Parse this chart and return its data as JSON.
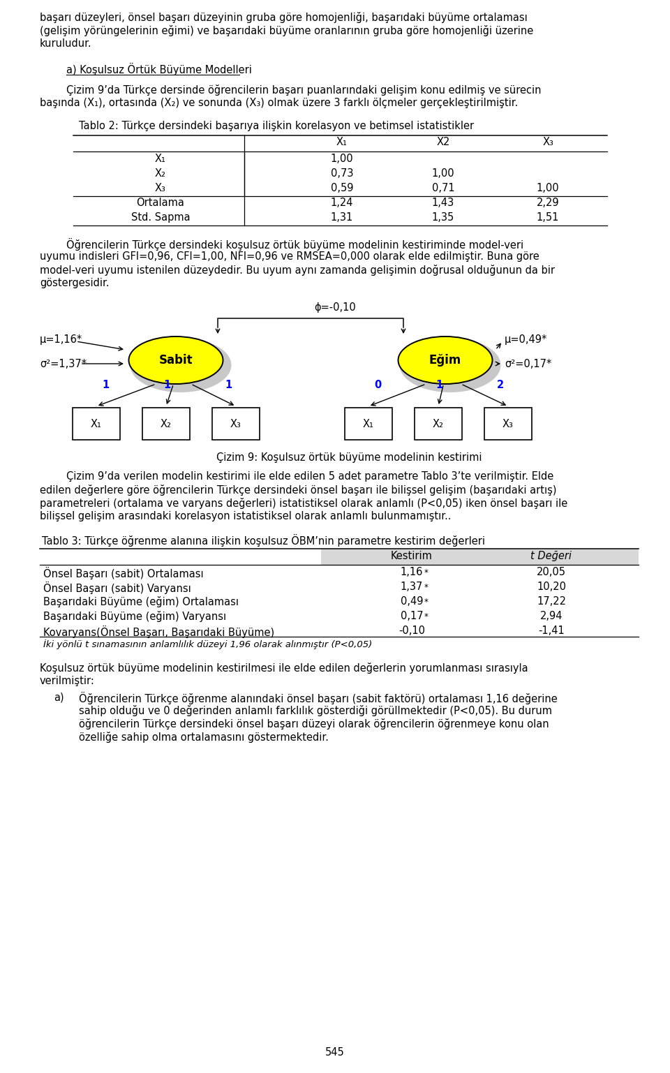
{
  "page_bg": "#ffffff",
  "fs": 10.5,
  "fs_small": 9.5,
  "para1a": "başarı düzeyleri, önsel başarı düzeyinin gruba göre homojenliği, başarıdaki büyüme ortalaması",
  "para1b": "(gelişim yörüngelerinin eğimi) ve başarıdaki büyüme oranlarının gruba göre homojenliği üzerine",
  "para1c": "kuruludur.",
  "heading_a": "a) Koşulsuz Örtük Büyüme Modelleri",
  "para2a": "Çizim 9’da Türkçe dersinde öğrencilerin başarı puanlarındaki gelişim konu edilmiş ve sürecin",
  "para2b": "başında (X₁), ortasında (X₂) ve sonunda (X₃) olmak üzere 3 farklı ölçmeler gerçekleştirilmiştir.",
  "tablo2_title": "Tablo 2: Türkçe dersindeki başarıya ilişkin korelasyon ve betimsel istatistikler",
  "tablo2_col_headers": [
    "X₁",
    "X2",
    "X₃"
  ],
  "tablo2_rows": [
    [
      "X₁",
      "1,00",
      "",
      ""
    ],
    [
      "X₂",
      "0,73",
      "1,00",
      ""
    ],
    [
      "X₃",
      "0,59",
      "0,71",
      "1,00"
    ],
    [
      "Ortalama",
      "1,24",
      "1,43",
      "2,29"
    ],
    [
      "Std. Sapma",
      "1,31",
      "1,35",
      "1,51"
    ]
  ],
  "para3a": "Öğrencilerin Türkçe dersindeki koşulsuz örtük büyüme modelinin kestiriminde model-veri",
  "para3b": "uyumu indisleri GFI=0,96, CFI=1,00, NFI=0,96 ve RMSEA=0,000 olarak elde edilmiştir. Buna göre",
  "para3c": "model-veri uyumu istenilen düzeydedir. Bu uyum aynı zamanda gelişimin doğrusal olduğunun da bir",
  "para3d": "göstergesidir.",
  "phi_label": "ϕ=-0,10",
  "mu_left": "μ=1,16*",
  "sigma_left": "σ²=1,37*",
  "mu_right": "μ=0,49*",
  "sigma_right": "σ²=0,17*",
  "sabit_label": "Sabit",
  "egim_label": "Eğim",
  "arrow_labels_left": [
    "1",
    "1",
    "1"
  ],
  "arrow_labels_right": [
    "0",
    "1",
    "2"
  ],
  "boxes_left": [
    "X₁",
    "X₂",
    "X₃"
  ],
  "boxes_right": [
    "X₁",
    "X₂",
    "X₃"
  ],
  "diagram_caption": "Çizim 9: Koşulsuz örtük büyüme modelinin kestirimi",
  "para4a": "Çizim 9’da verilen modelin kestirimi ile elde edilen 5 adet parametre Tablo 3’te verilmiştir. Elde",
  "para4b": "edilen değerlere göre öğrencilerin Türkçe dersindeki önsel başarı ile bilişsel gelişim (başarıdaki artış)",
  "para4c": "parametreleri (ortalama ve varyans değerleri) istatistiksel olarak anlamlı (P<0,05) iken önsel başarı ile",
  "para4d": "bilişsel gelişim arasındaki korelasyon istatistiksel olarak anlamlı bulunmamıştır..",
  "tablo3_title": "Tablo 3: Türkçe öğrenme alanına ilişkin koşulsuz ÖBM’nin parametre kestirim değerleri",
  "tablo3_col1": "Kestirim",
  "tablo3_col2": "t Değeri",
  "tablo3_rows": [
    [
      "Önsel Başarı (sabit) Ortalaması",
      "1,16*",
      "20,05"
    ],
    [
      "Önsel Başarı (sabit) Varyansı",
      "1,37*",
      "10,20"
    ],
    [
      "Başarıdaki Büyüme (eğim) Ortalaması",
      "0,49*",
      "17,22"
    ],
    [
      "Başarıdaki Büyüme (eğim) Varyansı",
      "0,17*",
      "2,94"
    ],
    [
      "Kovaryans(Önsel Başarı, Başarıdaki Büyüme)",
      "-0,10",
      "-1,41"
    ]
  ],
  "tablo3_footnote": "İki yönlü t sınamasının anlamlılık düzeyi 1,96 olarak alınmıştır (P<0,05)",
  "para5a": "Koşulsuz örtük büyüme modelinin kestirilmesi ile elde edilen değerlerin yorumlanması sırasıyla",
  "para5b": "verilmiştir:",
  "item_a_label": "a)",
  "item_a1": "Öğrencilerin Türkçe öğrenme alanındaki önsel başarı (sabit faktörü) ortalaması 1,16 değerine",
  "item_a2": "sahip olduğu ve 0 değerinden anlamlı farklılık gösterdiği görüllmektedir (P<0,05). Bu durum",
  "item_a3": "öğrencilerin Türkçe dersindeki önsel başarı düzeyi olarak öğrencilerin öğrenmeye konu olan",
  "item_a4": "özelliğe sahip olma ortalamasını göstermektedir.",
  "page_number": "545"
}
